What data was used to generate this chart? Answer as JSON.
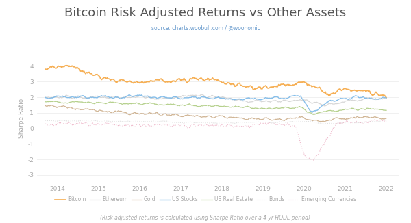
{
  "title": "Bitcoin Risk Adjusted Returns vs Other Assets",
  "subtitle": "source: charts.woobull.com / @woonomic",
  "ylabel": "Sharpe Ratio",
  "footnote": "(Risk adjusted returns is calculated using Sharpe Ratio over a 4 yr HODL period)",
  "ylim": [
    -3.5,
    4.8
  ],
  "yticks": [
    -3,
    -2,
    -1,
    0,
    1,
    2,
    3,
    4
  ],
  "ytick_labels": [
    "-3#",
    "-2#",
    "-1#",
    "0#",
    "1#",
    "2#",
    "3#",
    "4#"
  ],
  "xlim": [
    2013.5,
    2022.3
  ],
  "xticks": [
    2014,
    2015,
    2016,
    2017,
    2018,
    2019,
    2020,
    2021,
    2022
  ],
  "series": {
    "Bitcoin": {
      "color": "#f5a742",
      "lw": 1.2,
      "ls": "solid",
      "zorder": 5,
      "alpha": 0.9
    },
    "Ethereum": {
      "color": "#d0d0d0",
      "lw": 0.9,
      "ls": "solid",
      "zorder": 4,
      "alpha": 0.85
    },
    "Gold": {
      "color": "#c8a882",
      "lw": 0.9,
      "ls": "solid",
      "zorder": 3,
      "alpha": 0.85
    },
    "US Stocks": {
      "color": "#7ab8e8",
      "lw": 1.0,
      "ls": "solid",
      "zorder": 6,
      "alpha": 0.9
    },
    "US Real Estate": {
      "color": "#a8c878",
      "lw": 0.9,
      "ls": "solid",
      "zorder": 3,
      "alpha": 0.85
    },
    "Bonds": {
      "color": "#d0d0d0",
      "lw": 0.8,
      "ls": "dotted",
      "zorder": 2,
      "alpha": 0.7
    },
    "Emerging Currencies": {
      "color": "#e8a0b8",
      "lw": 0.8,
      "ls": "dotted",
      "zorder": 2,
      "alpha": 0.8
    }
  },
  "background_color": "#ffffff",
  "title_color": "#555555",
  "subtitle_color": "#6699cc",
  "tick_color": "#aaaaaa",
  "footnote_color": "#aaaaaa",
  "grid_color": "#eeeeee"
}
